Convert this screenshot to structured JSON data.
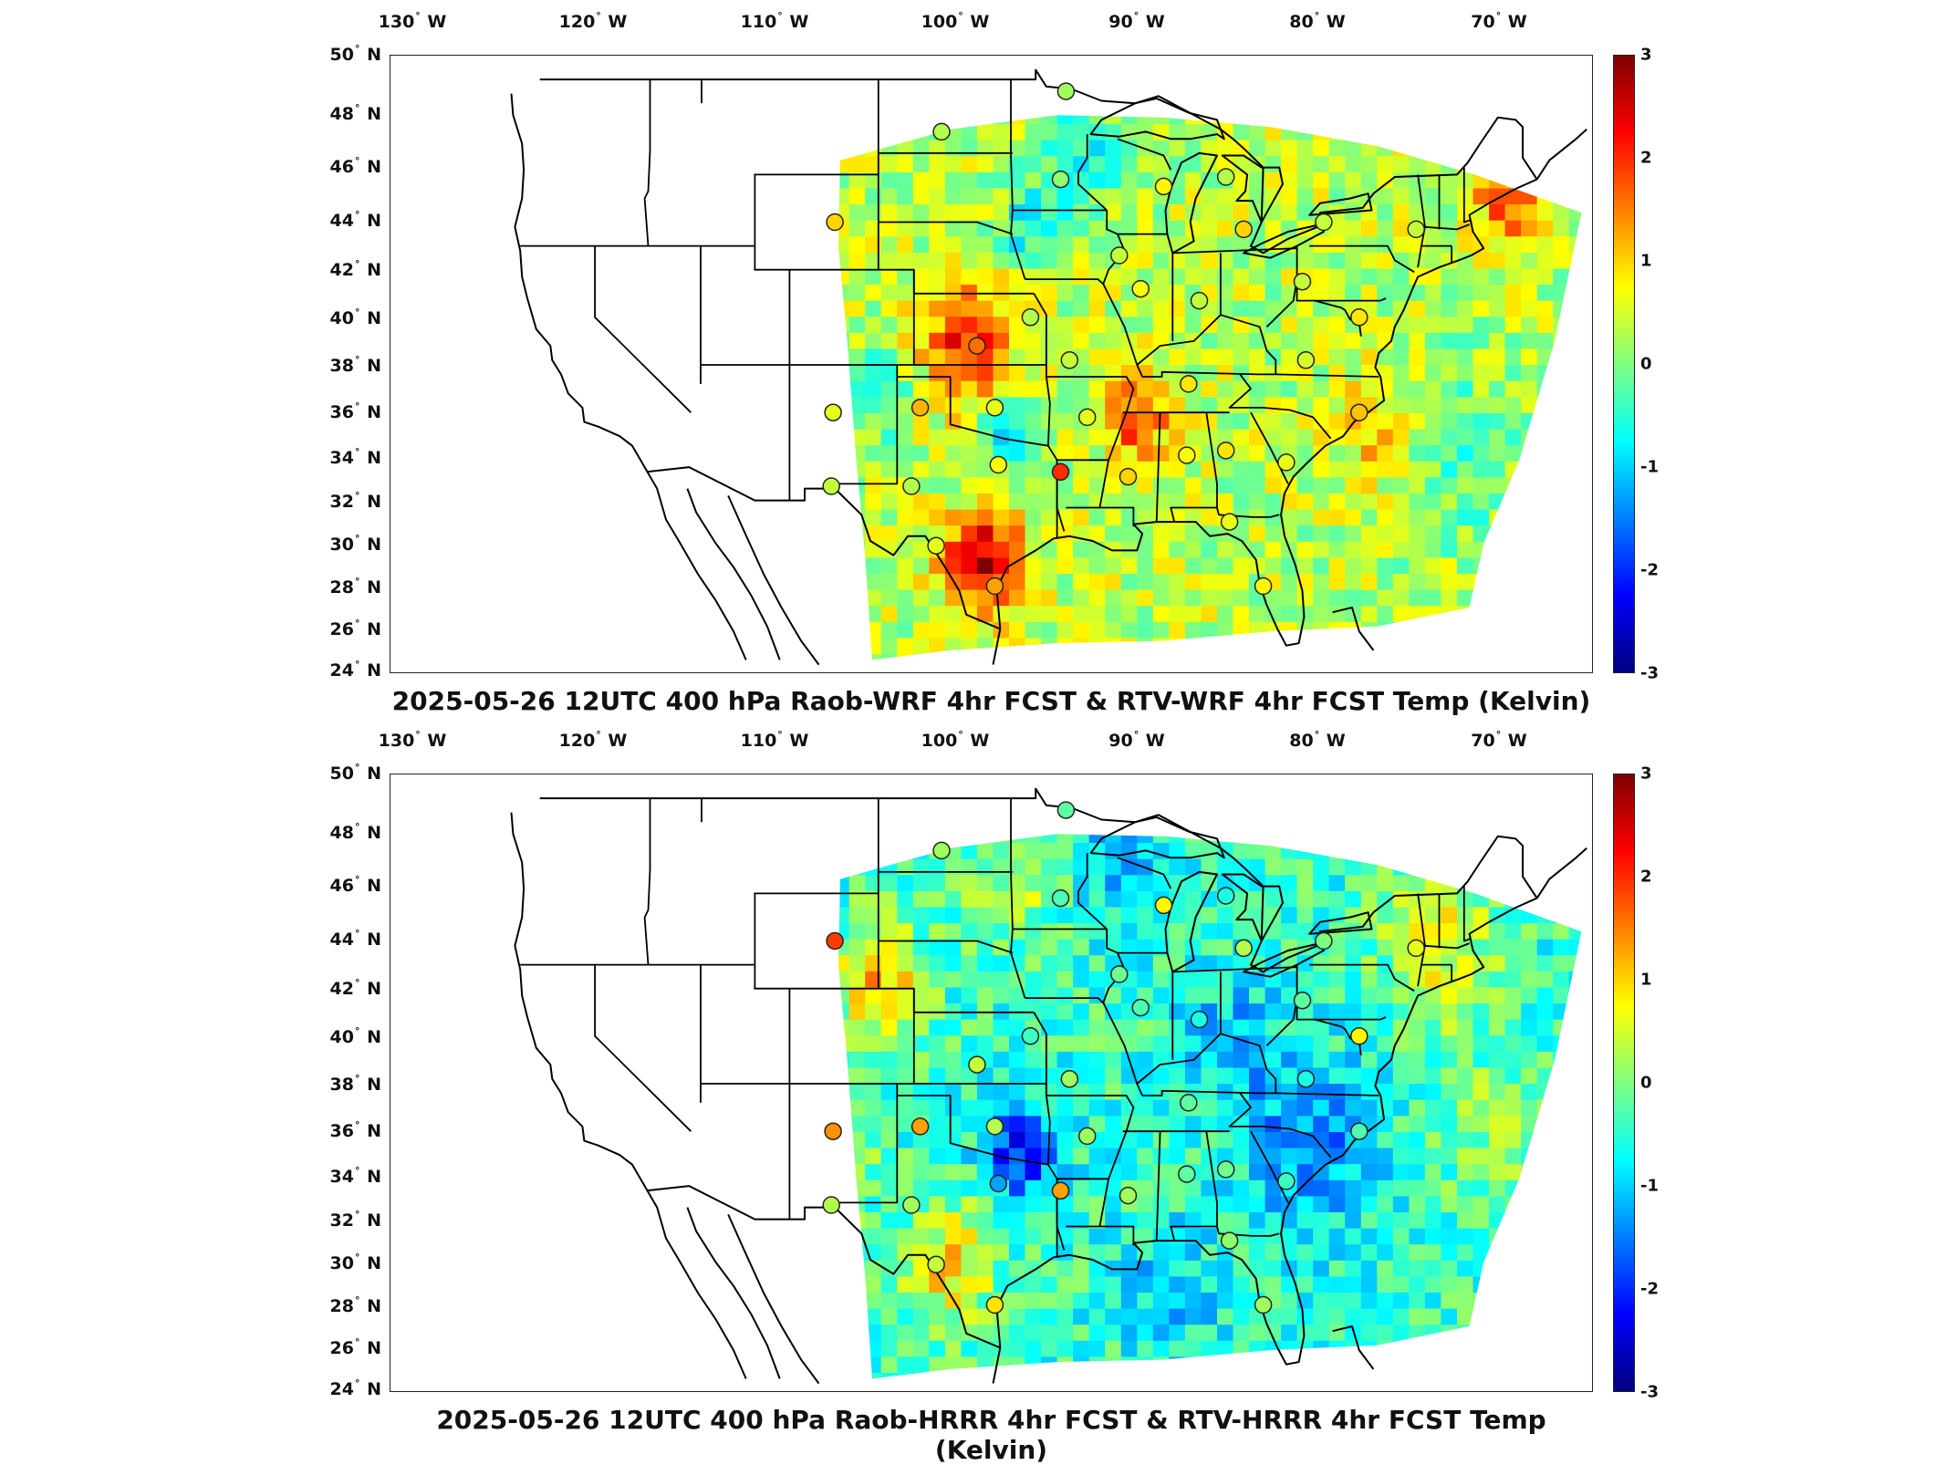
{
  "lon_labels": [
    {
      "deg": "130",
      "hem": "W"
    },
    {
      "deg": "120",
      "hem": "W"
    },
    {
      "deg": "110",
      "hem": "W"
    },
    {
      "deg": "100",
      "hem": "W"
    },
    {
      "deg": "90",
      "hem": "W"
    },
    {
      "deg": "80",
      "hem": "W"
    },
    {
      "deg": "70",
      "hem": "W"
    }
  ],
  "lat_labels": [
    {
      "deg": "50",
      "hem": "N"
    },
    {
      "deg": "48",
      "hem": "N"
    },
    {
      "deg": "46",
      "hem": "N"
    },
    {
      "deg": "44",
      "hem": "N"
    },
    {
      "deg": "42",
      "hem": "N"
    },
    {
      "deg": "40",
      "hem": "N"
    },
    {
      "deg": "38",
      "hem": "N"
    },
    {
      "deg": "36",
      "hem": "N"
    },
    {
      "deg": "34",
      "hem": "N"
    },
    {
      "deg": "32",
      "hem": "N"
    },
    {
      "deg": "30",
      "hem": "N"
    },
    {
      "deg": "28",
      "hem": "N"
    },
    {
      "deg": "26",
      "hem": "N"
    },
    {
      "deg": "24",
      "hem": "N"
    }
  ],
  "colorbar": {
    "range": [
      -3,
      3
    ],
    "ticks": [
      "3",
      "2",
      "1",
      "0",
      "-1",
      "-2",
      "-3"
    ],
    "colormap": [
      "#00007f",
      "#0000ff",
      "#007fff",
      "#00ffff",
      "#7fff7f",
      "#ffff00",
      "#ff7f00",
      "#ff0000",
      "#7f0000"
    ]
  },
  "panels": [
    {
      "title": "2025-05-26 12UTC 400 hPa Raob-WRF 4hr FCST & RTV-WRF 4hr FCST Temp (Kelvin)",
      "field_bias": 0.35,
      "anomalies": [
        {
          "lon": -98.5,
          "lat": 28.5,
          "r": 2.2,
          "v": 2.4
        },
        {
          "lon": -99.5,
          "lat": 37.5,
          "r": 2.6,
          "v": 1.7
        },
        {
          "lon": -90,
          "lat": 34.5,
          "r": 2.0,
          "v": 1.5
        },
        {
          "lon": -93,
          "lat": 45.5,
          "r": 2.5,
          "v": -1.1
        },
        {
          "lon": -97,
          "lat": 33.5,
          "r": 2.0,
          "v": -1.2
        },
        {
          "lon": -104.5,
          "lat": 35.5,
          "r": 2.0,
          "v": -0.9
        },
        {
          "lon": -69,
          "lat": 43.5,
          "r": 2.0,
          "v": 1.4
        },
        {
          "lon": -76,
          "lat": 34,
          "r": 2.5,
          "v": 0.9
        },
        {
          "lon": -72,
          "lat": 33,
          "r": 4.0,
          "v": -0.7
        },
        {
          "lon": -96,
          "lat": 42.5,
          "r": 2.0,
          "v": -1.0
        }
      ],
      "raobs": [
        {
          "lon": -106.5,
          "lat": 43,
          "v": 1.0
        },
        {
          "lon": -100.5,
          "lat": 46.8,
          "v": 0.3
        },
        {
          "lon": -93.5,
          "lat": 48.5,
          "v": 0.2
        },
        {
          "lon": -93.8,
          "lat": 44.8,
          "v": 0.1
        },
        {
          "lon": -88,
          "lat": 44.5,
          "v": 0.8
        },
        {
          "lon": -84.5,
          "lat": 44.9,
          "v": 0.3
        },
        {
          "lon": -83.5,
          "lat": 42.7,
          "v": 1.0
        },
        {
          "lon": -79,
          "lat": 43,
          "v": 0.4
        },
        {
          "lon": -73.8,
          "lat": 42.7,
          "v": 0.4
        },
        {
          "lon": -90.5,
          "lat": 41.6,
          "v": 0.4
        },
        {
          "lon": -89.3,
          "lat": 40.2,
          "v": 0.7
        },
        {
          "lon": -86,
          "lat": 39.7,
          "v": 0.4
        },
        {
          "lon": -80.2,
          "lat": 40.5,
          "v": 0.4
        },
        {
          "lon": -77,
          "lat": 39,
          "v": 0.9
        },
        {
          "lon": -98.5,
          "lat": 37.8,
          "v": 1.6
        },
        {
          "lon": -95.5,
          "lat": 39,
          "v": 0.3
        },
        {
          "lon": -93.3,
          "lat": 37.2,
          "v": 0.4
        },
        {
          "lon": -86.6,
          "lat": 36.2,
          "v": 0.9
        },
        {
          "lon": -80,
          "lat": 37.2,
          "v": 0.5
        },
        {
          "lon": -106.6,
          "lat": 35,
          "v": 0.6
        },
        {
          "lon": -101.7,
          "lat": 35.2,
          "v": 1.2
        },
        {
          "lon": -97.5,
          "lat": 35.2,
          "v": 0.6
        },
        {
          "lon": -92.3,
          "lat": 34.8,
          "v": 0.6
        },
        {
          "lon": -97.3,
          "lat": 32.8,
          "v": 0.7
        },
        {
          "lon": -93.8,
          "lat": 32.5,
          "v": 2.0
        },
        {
          "lon": -90,
          "lat": 32.3,
          "v": 1.0
        },
        {
          "lon": -86.7,
          "lat": 33.2,
          "v": 0.7
        },
        {
          "lon": -84.5,
          "lat": 33.4,
          "v": 0.9
        },
        {
          "lon": -81.1,
          "lat": 32.9,
          "v": 0.6
        },
        {
          "lon": -77,
          "lat": 35,
          "v": 1.1
        },
        {
          "lon": -106.7,
          "lat": 31.9,
          "v": 0.4
        },
        {
          "lon": -102.2,
          "lat": 31.9,
          "v": 0.3
        },
        {
          "lon": -100.8,
          "lat": 29.4,
          "v": 0.6
        },
        {
          "lon": -97.5,
          "lat": 27.7,
          "v": 1.3
        },
        {
          "lon": -84.3,
          "lat": 30.4,
          "v": 0.6
        },
        {
          "lon": -82.4,
          "lat": 27.7,
          "v": 0.8
        }
      ]
    },
    {
      "title": "2025-05-26 12UTC 400 hPa Raob-HRRR 4hr FCST & RTV-HRRR 4hr FCST Temp (Kelvin)",
      "field_bias": -0.45,
      "anomalies": [
        {
          "lon": -104.5,
          "lat": 41,
          "r": 2.5,
          "v": 1.7
        },
        {
          "lon": -108,
          "lat": 33,
          "r": 2.5,
          "v": 1.3
        },
        {
          "lon": -100.5,
          "lat": 29,
          "r": 2.5,
          "v": 1.4
        },
        {
          "lon": -96.5,
          "lat": 34,
          "r": 2.0,
          "v": -1.8
        },
        {
          "lon": -80,
          "lat": 34,
          "r": 3.5,
          "v": -1.1
        },
        {
          "lon": -84.5,
          "lat": 38.5,
          "r": 3.0,
          "v": -0.7
        },
        {
          "lon": -73,
          "lat": 42.5,
          "r": 3.0,
          "v": 1.2
        },
        {
          "lon": -91,
          "lat": 46,
          "r": 2.5,
          "v": -0.6
        },
        {
          "lon": -70,
          "lat": 35,
          "r": 3.5,
          "v": 0.5
        },
        {
          "lon": -97,
          "lat": 45,
          "r": 2.5,
          "v": 0.8
        },
        {
          "lon": -88,
          "lat": 28,
          "r": 3.0,
          "v": -0.6
        }
      ],
      "raobs": [
        {
          "lon": -106.5,
          "lat": 43,
          "v": 1.9
        },
        {
          "lon": -100.5,
          "lat": 46.8,
          "v": 0.2
        },
        {
          "lon": -93.5,
          "lat": 48.5,
          "v": -0.2
        },
        {
          "lon": -93.8,
          "lat": 44.8,
          "v": -0.3
        },
        {
          "lon": -88,
          "lat": 44.5,
          "v": 0.8
        },
        {
          "lon": -84.5,
          "lat": 44.9,
          "v": -0.6
        },
        {
          "lon": -83.5,
          "lat": 42.7,
          "v": 0.3
        },
        {
          "lon": -79,
          "lat": 43,
          "v": 0.0
        },
        {
          "lon": -73.8,
          "lat": 42.7,
          "v": 0.6
        },
        {
          "lon": -90.5,
          "lat": 41.6,
          "v": -0.1
        },
        {
          "lon": -89.3,
          "lat": 40.2,
          "v": -0.3
        },
        {
          "lon": -86,
          "lat": 39.7,
          "v": -0.6
        },
        {
          "lon": -80.2,
          "lat": 40.5,
          "v": -0.2
        },
        {
          "lon": -77,
          "lat": 39,
          "v": 0.8
        },
        {
          "lon": -98.5,
          "lat": 37.8,
          "v": 0.4
        },
        {
          "lon": -95.5,
          "lat": 39,
          "v": -0.4
        },
        {
          "lon": -93.3,
          "lat": 37.2,
          "v": 0.2
        },
        {
          "lon": -86.6,
          "lat": 36.2,
          "v": -0.2
        },
        {
          "lon": -80,
          "lat": 37.2,
          "v": -0.6
        },
        {
          "lon": -106.6,
          "lat": 35,
          "v": 1.4
        },
        {
          "lon": -101.7,
          "lat": 35.2,
          "v": 1.3
        },
        {
          "lon": -97.5,
          "lat": 35.2,
          "v": 0.3
        },
        {
          "lon": -92.3,
          "lat": 34.8,
          "v": 0.2
        },
        {
          "lon": -97.3,
          "lat": 32.8,
          "v": -1.3
        },
        {
          "lon": -93.8,
          "lat": 32.5,
          "v": 1.3
        },
        {
          "lon": -90,
          "lat": 32.3,
          "v": 0.2
        },
        {
          "lon": -86.7,
          "lat": 33.2,
          "v": -0.2
        },
        {
          "lon": -84.5,
          "lat": 33.4,
          "v": -0.1
        },
        {
          "lon": -81.1,
          "lat": 32.9,
          "v": -0.4
        },
        {
          "lon": -77,
          "lat": 35,
          "v": -0.3
        },
        {
          "lon": -106.7,
          "lat": 31.9,
          "v": 0.3
        },
        {
          "lon": -102.2,
          "lat": 31.9,
          "v": 0.2
        },
        {
          "lon": -100.8,
          "lat": 29.4,
          "v": 0.4
        },
        {
          "lon": -97.5,
          "lat": 27.7,
          "v": 0.9
        },
        {
          "lon": -84.3,
          "lat": 30.4,
          "v": 0.1
        },
        {
          "lon": -82.4,
          "lat": 27.7,
          "v": 0.2
        }
      ]
    }
  ]
}
